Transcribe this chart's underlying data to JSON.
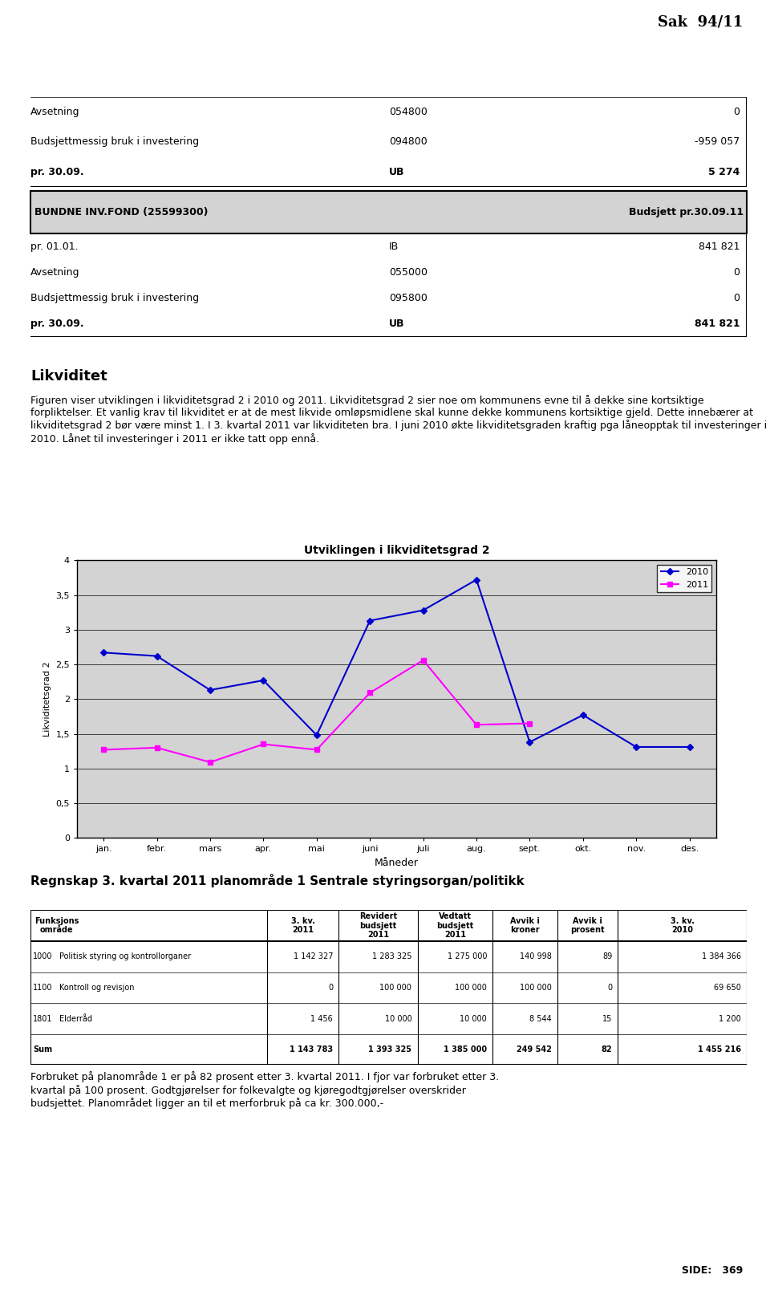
{
  "title_header": "Sak  94/11",
  "table1_rows": [
    [
      "Avsetning",
      "054800",
      "0"
    ],
    [
      "Budsjettmessig bruk i investering",
      "094800",
      "-959 057"
    ],
    [
      "pr. 30.09.",
      "UB",
      "5 274"
    ]
  ],
  "table1_header_row": [
    "BUNDNE INV.FOND (25599300)",
    "",
    "Budsjett pr.30.09.11"
  ],
  "table2_rows": [
    [
      "pr. 01.01.",
      "IB",
      "841 821"
    ],
    [
      "Avsetning",
      "055000",
      "0"
    ],
    [
      "Budsjettmessig bruk i investering",
      "095800",
      "0"
    ],
    [
      "pr. 30.09.",
      "UB",
      "841 821"
    ]
  ],
  "likviditet_title": "Likviditet",
  "likviditet_text": "Figuren viser utviklingen i likviditetsgrad 2 i 2010 og 2011. Likviditetsgrad 2 sier noe om kommunens evne til å dekke sine kortsiktige forpliktelser. Et vanlig krav til likviditet er at de mest likvide omløpsmidlene skal kunne dekke kommunens kortsiktige gjeld. Dette innebærer at likviditetsgrad 2 bør være minst 1. I 3. kvartal 2011 var likviditeten bra. I juni 2010 økte likviditetsgraden kraftig pga låneopptak til investeringer i 2010. Lånet til investeringer i 2011 er ikke tatt opp ennå.",
  "chart_title": "Utviklingen i likviditetsgrad 2",
  "chart_xlabel": "Måneder",
  "chart_ylabel": "Likviditetsgrad 2",
  "chart_months": [
    "jan.",
    "febr.",
    "mars",
    "apr.",
    "mai",
    "juni",
    "juli",
    "aug.",
    "sept.",
    "okt.",
    "nov.",
    "des."
  ],
  "series_2010": [
    2.67,
    2.62,
    2.13,
    2.27,
    1.48,
    3.13,
    3.28,
    3.72,
    1.38,
    1.77,
    1.31,
    1.31
  ],
  "series_2011": [
    1.27,
    1.3,
    1.09,
    1.35,
    1.27,
    2.09,
    2.56,
    1.63,
    1.65,
    null,
    null,
    null
  ],
  "color_2010": "#0000CD",
  "color_2011": "#FF00FF",
  "chart_ylim": [
    0,
    4
  ],
  "chart_yticks": [
    0,
    0.5,
    1,
    1.5,
    2,
    2.5,
    3,
    3.5,
    4
  ],
  "regnskap_title": "Regnskap 3. kvartal 2011 planområde 1 Sentrale styringsorgan/politikk",
  "regnskap_rows": [
    [
      "1000",
      "Politisk styring og kontrollorganer",
      "1 142 327",
      "1 283 325",
      "1 275 000",
      "140 998",
      "89",
      "1 384 366"
    ],
    [
      "1100",
      "Kontroll og revisjon",
      "0",
      "100 000",
      "100 000",
      "100 000",
      "0",
      "69 650"
    ],
    [
      "1801",
      "Elderråd",
      "1 456",
      "10 000",
      "10 000",
      "8 544",
      "15",
      "1 200"
    ],
    [
      "Sum",
      "",
      "1 143 783",
      "1 393 325",
      "1 385 000",
      "249 542",
      "82",
      "1 455 216"
    ]
  ],
  "footer_text": "Forbruket på planområde 1 er på 82 prosent etter 3. kvartal 2011. I fjor var forbruket etter 3.\nkvartal på 100 prosent. Godtgjørelser for folkevalgte og kjøregodtgjørelser overskrider\nbudsjettet. Planområdet ligger an til et merforbruk på ca kr. 300.000,-",
  "side_text": "SIDE:   369",
  "background_color": "#ffffff",
  "chart_bg_color": "#d3d3d3",
  "table_header_bg": "#d3d3d3"
}
